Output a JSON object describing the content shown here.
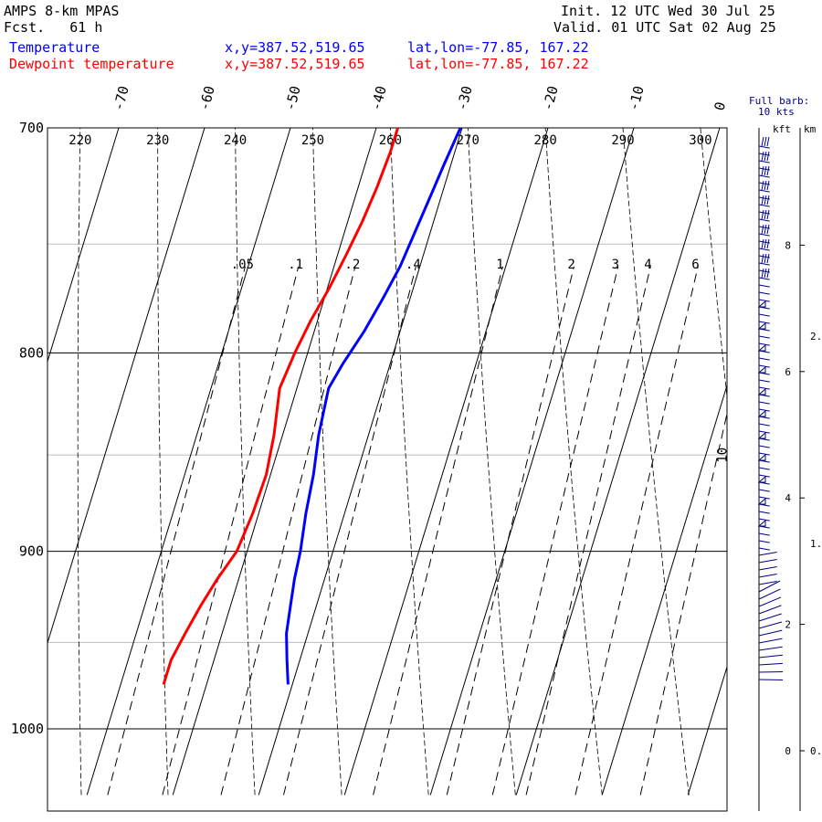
{
  "header": {
    "title": "AMPS 8-km MPAS",
    "forecast": "Fcst.   61 h",
    "init": "Init. 12 UTC Wed 30 Jul 25",
    "valid": "Valid. 01 UTC Sat 02 Aug 25",
    "series_temperature_label": "Temperature",
    "series_dewpoint_label": "Dewpoint temperature",
    "xy_temp": "x,y=387.52,519.65",
    "latlon_temp": "lat,lon=-77.85, 167.22",
    "xy_dew": "x,y=387.52,519.65",
    "latlon_dew": "lat,lon=-77.85, 167.22",
    "barb_title": "Full barb:",
    "barb_units": "10 kts",
    "kft_label": "kft",
    "km_label": "km"
  },
  "colors": {
    "temperature": "#0000ff",
    "dewpoint": "#ff0000",
    "grid": "#000000",
    "wind_barbs": "#00008b"
  },
  "chart_data": {
    "type": "line",
    "title": "",
    "xlabel": "",
    "ylabel": "",
    "pressure_range_hPa": [
      1040,
      700
    ],
    "temperature_range_C": [
      -80,
      5
    ],
    "y_scale": "log",
    "pressure_ticks": [
      "700",
      "800",
      "900",
      "1000"
    ],
    "isotherm_labels": [
      "-70",
      "-60",
      "-50",
      "-40",
      "-30",
      "-20",
      "-10",
      "0"
    ],
    "isotherm_label_values": [
      -70,
      -60,
      -50,
      -40,
      -30,
      -20,
      -10,
      0
    ],
    "dry_adiabat_labels": [
      "220",
      "230",
      "240",
      "250",
      "260",
      "270",
      "280",
      "290",
      "300"
    ],
    "dry_adiabat_values_K": [
      220,
      230,
      240,
      250,
      260,
      270,
      280,
      290,
      300
    ],
    "mixing_ratio_labels": [
      ".05",
      ".1",
      ".2",
      ".4",
      "1",
      "2",
      "3",
      "4",
      "6",
      "10"
    ],
    "mixing_ratio_values_gkg": [
      0.05,
      0.1,
      0.2,
      0.4,
      1,
      2,
      3,
      4,
      6,
      10
    ],
    "series": [
      {
        "name": "Temperature",
        "pressure_hPa": [
          974,
          960,
          945,
          930,
          915,
          900,
          880,
          860,
          840,
          817,
          805,
          790,
          775,
          760,
          745,
          730,
          715,
          700
        ],
        "values_C": [
          -30.5,
          -31.5,
          -32.5,
          -33.0,
          -33.5,
          -33.8,
          -34.5,
          -35.0,
          -35.8,
          -36.3,
          -35.5,
          -34.2,
          -33.2,
          -32.3,
          -31.8,
          -31.3,
          -30.8,
          -30.2
        ]
      },
      {
        "name": "Dewpoint temperature",
        "pressure_hPa": [
          974,
          960,
          945,
          930,
          915,
          900,
          880,
          860,
          840,
          817,
          800,
          785,
          770,
          755,
          740,
          725,
          710,
          700
        ],
        "values_C": [
          -45.0,
          -45.0,
          -44.3,
          -43.5,
          -42.5,
          -41.2,
          -40.7,
          -40.5,
          -41.0,
          -42.0,
          -41.5,
          -40.8,
          -39.8,
          -39.0,
          -38.3,
          -37.8,
          -37.5,
          -37.5
        ]
      }
    ],
    "height_axes": {
      "kft_ticks": [
        "8",
        "6",
        "4",
        "2",
        "0"
      ],
      "kft_values": [
        8,
        6,
        4,
        2,
        0
      ],
      "km_ticks": [
        "2.",
        "1.",
        "0."
      ],
      "km_values": [
        2,
        1,
        0
      ]
    },
    "grid": true,
    "legend": "top-left"
  }
}
